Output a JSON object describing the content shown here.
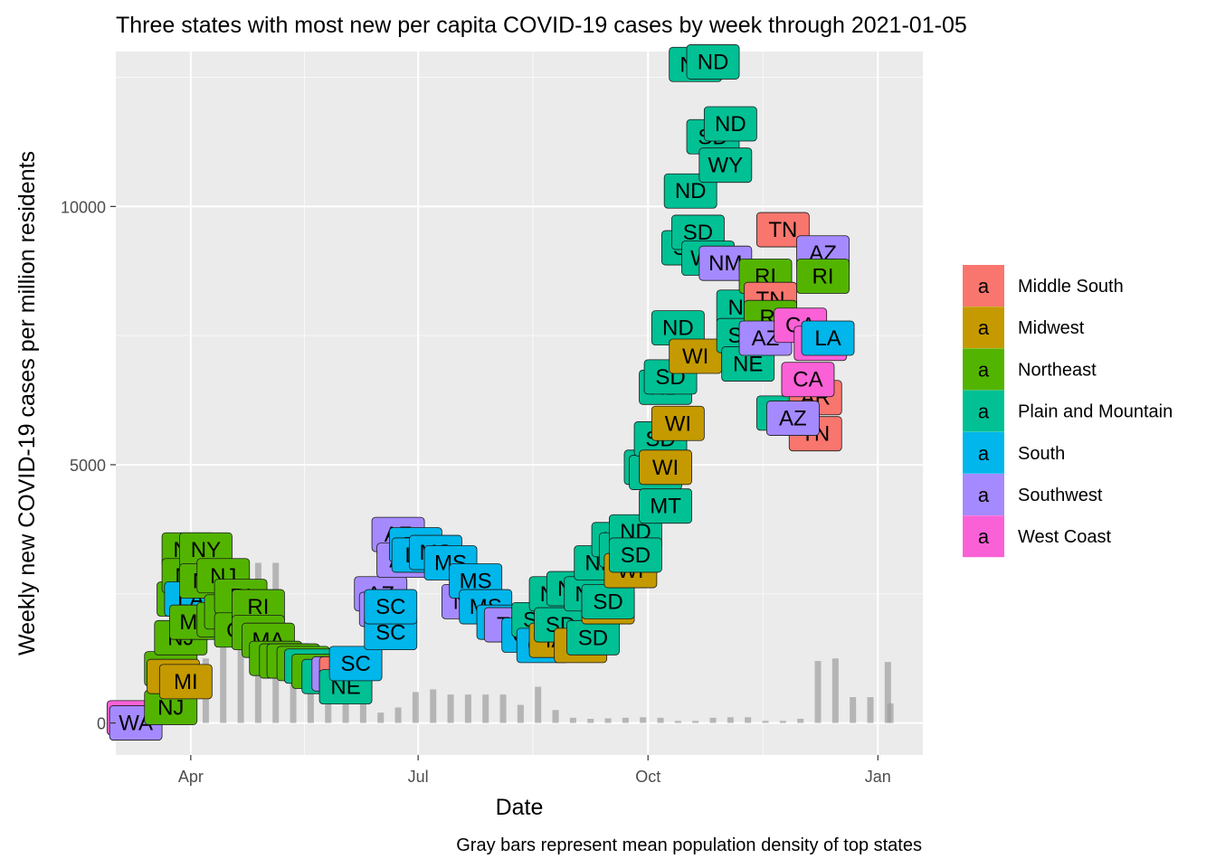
{
  "chart_data": {
    "type": "scatter",
    "title": "Three states with most new per capita COVID-19 cases by week through 2021-01-05",
    "xlabel": "Date",
    "ylabel": "Weekly new COVID-19 cases per million residents",
    "caption": "Gray bars represent mean population density of top states",
    "x_ticks": [
      {
        "label": "Apr",
        "date": "2020-04-01"
      },
      {
        "label": "Jul",
        "date": "2020-07-01"
      },
      {
        "label": "Oct",
        "date": "2020-10-01"
      },
      {
        "label": "Jan",
        "date": "2021-01-01"
      }
    ],
    "y_ticks": [
      0,
      5000,
      10000
    ],
    "xlim": [
      "2020-03-02",
      "2021-01-19"
    ],
    "ylim": [
      -620,
      13000
    ],
    "grid": true,
    "legend_position": "right",
    "legend_key_glyph": "a",
    "legend": [
      {
        "name": "Middle South",
        "color": "#F8766D"
      },
      {
        "name": "Midwest",
        "color": "#C49A00"
      },
      {
        "name": "Northeast",
        "color": "#53B400"
      },
      {
        "name": "Plain and Mountain",
        "color": "#00C094"
      },
      {
        "name": "South",
        "color": "#00B6EB"
      },
      {
        "name": "Southwest",
        "color": "#A58AFF"
      },
      {
        "name": "West Coast",
        "color": "#FB61D7"
      }
    ],
    "bars": [
      {
        "x": "2020-03-24",
        "y": 1150
      },
      {
        "x": "2020-03-31",
        "y": 1150
      },
      {
        "x": "2020-04-07",
        "y": 1250
      },
      {
        "x": "2020-04-14",
        "y": 1550
      },
      {
        "x": "2020-04-21",
        "y": 1900
      },
      {
        "x": "2020-04-28",
        "y": 3100
      },
      {
        "x": "2020-05-05",
        "y": 3100
      },
      {
        "x": "2020-05-12",
        "y": 1500
      },
      {
        "x": "2020-05-19",
        "y": 1150
      },
      {
        "x": "2020-05-26",
        "y": 1100
      },
      {
        "x": "2020-06-02",
        "y": 1050
      },
      {
        "x": "2020-06-09",
        "y": 700
      },
      {
        "x": "2020-06-16",
        "y": 200
      },
      {
        "x": "2020-06-23",
        "y": 300
      },
      {
        "x": "2020-06-30",
        "y": 600
      },
      {
        "x": "2020-07-07",
        "y": 650
      },
      {
        "x": "2020-07-14",
        "y": 550
      },
      {
        "x": "2020-07-21",
        "y": 550
      },
      {
        "x": "2020-07-28",
        "y": 550
      },
      {
        "x": "2020-08-04",
        "y": 550
      },
      {
        "x": "2020-08-11",
        "y": 350
      },
      {
        "x": "2020-08-18",
        "y": 700
      },
      {
        "x": "2020-08-25",
        "y": 250
      },
      {
        "x": "2020-09-01",
        "y": 100
      },
      {
        "x": "2020-09-08",
        "y": 80
      },
      {
        "x": "2020-09-15",
        "y": 90
      },
      {
        "x": "2020-09-22",
        "y": 100
      },
      {
        "x": "2020-09-29",
        "y": 110
      },
      {
        "x": "2020-10-06",
        "y": 100
      },
      {
        "x": "2020-10-13",
        "y": 40
      },
      {
        "x": "2020-10-20",
        "y": 40
      },
      {
        "x": "2020-10-27",
        "y": 100
      },
      {
        "x": "2020-11-03",
        "y": 110
      },
      {
        "x": "2020-11-10",
        "y": 110
      },
      {
        "x": "2020-11-17",
        "y": 40
      },
      {
        "x": "2020-11-24",
        "y": 40
      },
      {
        "x": "2020-12-01",
        "y": 80
      },
      {
        "x": "2020-12-08",
        "y": 1200
      },
      {
        "x": "2020-12-15",
        "y": 1250
      },
      {
        "x": "2020-12-22",
        "y": 500
      },
      {
        "x": "2020-12-29",
        "y": 500
      },
      {
        "x": "2021-01-05",
        "y": 1180
      },
      {
        "x": "2021-01-06",
        "y": 380
      }
    ],
    "points": [
      {
        "x": "2020-03-09",
        "y": 100,
        "label": "WA",
        "group": "West Coast"
      },
      {
        "x": "2020-03-10",
        "y": 0,
        "label": "WA",
        "group": "Southwest"
      },
      {
        "x": "2020-03-24",
        "y": 1050,
        "label": "NY",
        "group": "Northeast"
      },
      {
        "x": "2020-03-24",
        "y": 300,
        "label": "NJ",
        "group": "Northeast"
      },
      {
        "x": "2020-03-25",
        "y": 900,
        "label": "MI",
        "group": "Midwest"
      },
      {
        "x": "2020-03-28",
        "y": 1650,
        "label": "NJ",
        "group": "Northeast"
      },
      {
        "x": "2020-03-29",
        "y": 2400,
        "label": "NJ",
        "group": "Northeast"
      },
      {
        "x": "2020-03-30",
        "y": 800,
        "label": "MI",
        "group": "Midwest"
      },
      {
        "x": "2020-03-31",
        "y": 3350,
        "label": "NY",
        "group": "Northeast"
      },
      {
        "x": "2020-03-31",
        "y": 2850,
        "label": "NJ",
        "group": "Northeast"
      },
      {
        "x": "2020-04-01",
        "y": 2400,
        "label": "LA",
        "group": "South"
      },
      {
        "x": "2020-04-03",
        "y": 1950,
        "label": "MA",
        "group": "Northeast"
      },
      {
        "x": "2020-04-07",
        "y": 3350,
        "label": "NY",
        "group": "Northeast"
      },
      {
        "x": "2020-04-07",
        "y": 2750,
        "label": "NJ",
        "group": "Northeast"
      },
      {
        "x": "2020-04-14",
        "y": 2850,
        "label": "NJ",
        "group": "Northeast"
      },
      {
        "x": "2020-04-14",
        "y": 2000,
        "label": "MA",
        "group": "Northeast"
      },
      {
        "x": "2020-04-17",
        "y": 2150,
        "label": "RI",
        "group": "Northeast"
      },
      {
        "x": "2020-04-21",
        "y": 2450,
        "label": "RI",
        "group": "Northeast"
      },
      {
        "x": "2020-04-21",
        "y": 1800,
        "label": "CT",
        "group": "Northeast"
      },
      {
        "x": "2020-04-28",
        "y": 2250,
        "label": "RI",
        "group": "Northeast"
      },
      {
        "x": "2020-04-28",
        "y": 1750,
        "label": "DE",
        "group": "Northeast"
      },
      {
        "x": "2020-05-02",
        "y": 1600,
        "label": "MA",
        "group": "Northeast"
      },
      {
        "x": "2020-05-05",
        "y": 1250,
        "label": "DE",
        "group": "Northeast"
      },
      {
        "x": "2020-05-09",
        "y": 1200,
        "label": "MA",
        "group": "Northeast"
      },
      {
        "x": "2020-05-12",
        "y": 1200,
        "label": "RI",
        "group": "Northeast"
      },
      {
        "x": "2020-05-16",
        "y": 1150,
        "label": "MA",
        "group": "Northeast"
      },
      {
        "x": "2020-05-19",
        "y": 1100,
        "label": "NE",
        "group": "Plain and Mountain"
      },
      {
        "x": "2020-05-22",
        "y": 1000,
        "label": "RI",
        "group": "Northeast"
      },
      {
        "x": "2020-05-26",
        "y": 900,
        "label": "NE",
        "group": "Plain and Mountain"
      },
      {
        "x": "2020-05-30",
        "y": 950,
        "label": "AZ",
        "group": "Southwest"
      },
      {
        "x": "2020-06-02",
        "y": 950,
        "label": "AR",
        "group": "Middle South"
      },
      {
        "x": "2020-06-02",
        "y": 700,
        "label": "NE",
        "group": "Plain and Mountain"
      },
      {
        "x": "2020-06-06",
        "y": 1150,
        "label": "SC",
        "group": "South"
      },
      {
        "x": "2020-06-16",
        "y": 2500,
        "label": "AZ",
        "group": "Southwest"
      },
      {
        "x": "2020-06-18",
        "y": 2200,
        "label": "AZ",
        "group": "Southwest"
      },
      {
        "x": "2020-06-20",
        "y": 1750,
        "label": "SC",
        "group": "South"
      },
      {
        "x": "2020-06-20",
        "y": 2250,
        "label": "SC",
        "group": "South"
      },
      {
        "x": "2020-06-23",
        "y": 3650,
        "label": "AZ",
        "group": "Southwest"
      },
      {
        "x": "2020-06-25",
        "y": 3150,
        "label": "AZ",
        "group": "Southwest"
      },
      {
        "x": "2020-06-30",
        "y": 3450,
        "label": "FL",
        "group": "South"
      },
      {
        "x": "2020-07-01",
        "y": 3250,
        "label": "LA",
        "group": "South"
      },
      {
        "x": "2020-07-08",
        "y": 3300,
        "label": "MS",
        "group": "South"
      },
      {
        "x": "2020-07-14",
        "y": 3100,
        "label": "MS",
        "group": "South"
      },
      {
        "x": "2020-07-21",
        "y": 2350,
        "label": "NV",
        "group": "Southwest"
      },
      {
        "x": "2020-07-24",
        "y": 2750,
        "label": "MS",
        "group": "South"
      },
      {
        "x": "2020-07-28",
        "y": 2250,
        "label": "MS",
        "group": "South"
      },
      {
        "x": "2020-08-04",
        "y": 1950,
        "label": "MS",
        "group": "South"
      },
      {
        "x": "2020-08-07",
        "y": 1900,
        "label": "TX",
        "group": "Southwest"
      },
      {
        "x": "2020-08-14",
        "y": 1700,
        "label": "GA",
        "group": "South"
      },
      {
        "x": "2020-08-18",
        "y": 2000,
        "label": "SD",
        "group": "Plain and Mountain"
      },
      {
        "x": "2020-08-20",
        "y": 1500,
        "label": "GA",
        "group": "South"
      },
      {
        "x": "2020-08-25",
        "y": 2500,
        "label": "ND",
        "group": "Plain and Mountain"
      },
      {
        "x": "2020-08-25",
        "y": 1600,
        "label": "IA",
        "group": "Midwest"
      },
      {
        "x": "2020-08-27",
        "y": 1900,
        "label": "SD",
        "group": "Plain and Mountain"
      },
      {
        "x": "2020-09-01",
        "y": 2600,
        "label": "ND",
        "group": "Plain and Mountain"
      },
      {
        "x": "2020-09-04",
        "y": 1500,
        "label": "IA",
        "group": "Midwest"
      },
      {
        "x": "2020-09-08",
        "y": 2500,
        "label": "ND",
        "group": "Plain and Mountain"
      },
      {
        "x": "2020-09-09",
        "y": 1650,
        "label": "SD",
        "group": "Plain and Mountain"
      },
      {
        "x": "2020-09-12",
        "y": 3100,
        "label": "ND",
        "group": "Plain and Mountain"
      },
      {
        "x": "2020-09-15",
        "y": 2250,
        "label": "WI",
        "group": "Midwest"
      },
      {
        "x": "2020-09-15",
        "y": 2350,
        "label": "SD",
        "group": "Plain and Mountain"
      },
      {
        "x": "2020-09-19",
        "y": 3550,
        "label": "ND",
        "group": "Plain and Mountain"
      },
      {
        "x": "2020-09-22",
        "y": 3350,
        "label": "SD",
        "group": "Plain and Mountain"
      },
      {
        "x": "2020-09-24",
        "y": 2950,
        "label": "WI",
        "group": "Midwest"
      },
      {
        "x": "2020-09-26",
        "y": 3700,
        "label": "ND",
        "group": "Plain and Mountain"
      },
      {
        "x": "2020-09-26",
        "y": 3250,
        "label": "SD",
        "group": "Plain and Mountain"
      },
      {
        "x": "2020-10-02",
        "y": 4950,
        "label": "ND",
        "group": "Plain and Mountain"
      },
      {
        "x": "2020-10-04",
        "y": 4850,
        "label": "SD",
        "group": "Plain and Mountain"
      },
      {
        "x": "2020-10-06",
        "y": 5500,
        "label": "SD",
        "group": "Plain and Mountain"
      },
      {
        "x": "2020-10-08",
        "y": 4200,
        "label": "MT",
        "group": "Plain and Mountain"
      },
      {
        "x": "2020-10-08",
        "y": 4950,
        "label": "WI",
        "group": "Midwest"
      },
      {
        "x": "2020-10-13",
        "y": 5800,
        "label": "WI",
        "group": "Midwest"
      },
      {
        "x": "2020-10-08",
        "y": 6500,
        "label": "ND",
        "group": "Plain and Mountain"
      },
      {
        "x": "2020-10-10",
        "y": 6700,
        "label": "SD",
        "group": "Plain and Mountain"
      },
      {
        "x": "2020-10-13",
        "y": 7650,
        "label": "ND",
        "group": "Plain and Mountain"
      },
      {
        "x": "2020-10-20",
        "y": 7100,
        "label": "WI",
        "group": "Midwest"
      },
      {
        "x": "2020-10-18",
        "y": 10300,
        "label": "ND",
        "group": "Plain and Mountain"
      },
      {
        "x": "2020-10-17",
        "y": 9200,
        "label": "SD",
        "group": "Plain and Mountain"
      },
      {
        "x": "2020-10-21",
        "y": 9500,
        "label": "SD",
        "group": "Plain and Mountain"
      },
      {
        "x": "2020-10-25",
        "y": 9000,
        "label": "WY",
        "group": "Plain and Mountain"
      },
      {
        "x": "2020-10-20",
        "y": 12750,
        "label": "ND",
        "group": "Plain and Mountain"
      },
      {
        "x": "2020-10-27",
        "y": 12800,
        "label": "ND",
        "group": "Plain and Mountain"
      },
      {
        "x": "2020-10-27",
        "y": 11350,
        "label": "SD",
        "group": "Plain and Mountain"
      },
      {
        "x": "2020-11-03",
        "y": 11600,
        "label": "ND",
        "group": "Plain and Mountain"
      },
      {
        "x": "2020-11-01",
        "y": 10800,
        "label": "WY",
        "group": "Plain and Mountain"
      },
      {
        "x": "2020-11-01",
        "y": 8900,
        "label": "NM",
        "group": "Southwest"
      },
      {
        "x": "2020-11-08",
        "y": 8050,
        "label": "NE",
        "group": "Plain and Mountain"
      },
      {
        "x": "2020-11-08",
        "y": 7500,
        "label": "SD",
        "group": "Plain and Mountain"
      },
      {
        "x": "2020-11-10",
        "y": 6950,
        "label": "NE",
        "group": "Plain and Mountain"
      },
      {
        "x": "2020-11-17",
        "y": 8650,
        "label": "RI",
        "group": "Northeast"
      },
      {
        "x": "2020-11-19",
        "y": 8200,
        "label": "TN",
        "group": "Middle South"
      },
      {
        "x": "2020-11-19",
        "y": 7850,
        "label": "RI",
        "group": "Northeast"
      },
      {
        "x": "2020-11-17",
        "y": 7450,
        "label": "AZ",
        "group": "Southwest"
      },
      {
        "x": "2020-11-24",
        "y": 9550,
        "label": "TN",
        "group": "Middle South"
      },
      {
        "x": "2020-11-24",
        "y": 6000,
        "label": "CA",
        "group": "Plain and Mountain"
      },
      {
        "x": "2020-12-01",
        "y": 7700,
        "label": "CA",
        "group": "West Coast"
      },
      {
        "x": "2020-12-07",
        "y": 6300,
        "label": "AR",
        "group": "Middle South"
      },
      {
        "x": "2020-12-07",
        "y": 5600,
        "label": "TN",
        "group": "Middle South"
      },
      {
        "x": "2020-11-28",
        "y": 5900,
        "label": "AZ",
        "group": "Southwest"
      },
      {
        "x": "2020-12-04",
        "y": 6650,
        "label": "CA",
        "group": "West Coast"
      },
      {
        "x": "2020-12-09",
        "y": 7350,
        "label": "CA",
        "group": "West Coast"
      },
      {
        "x": "2020-12-12",
        "y": 7450,
        "label": "LA",
        "group": "South"
      },
      {
        "x": "2020-12-10",
        "y": 9100,
        "label": "AZ",
        "group": "Southwest"
      },
      {
        "x": "2020-12-10",
        "y": 8650,
        "label": "RI",
        "group": "Northeast"
      }
    ]
  }
}
